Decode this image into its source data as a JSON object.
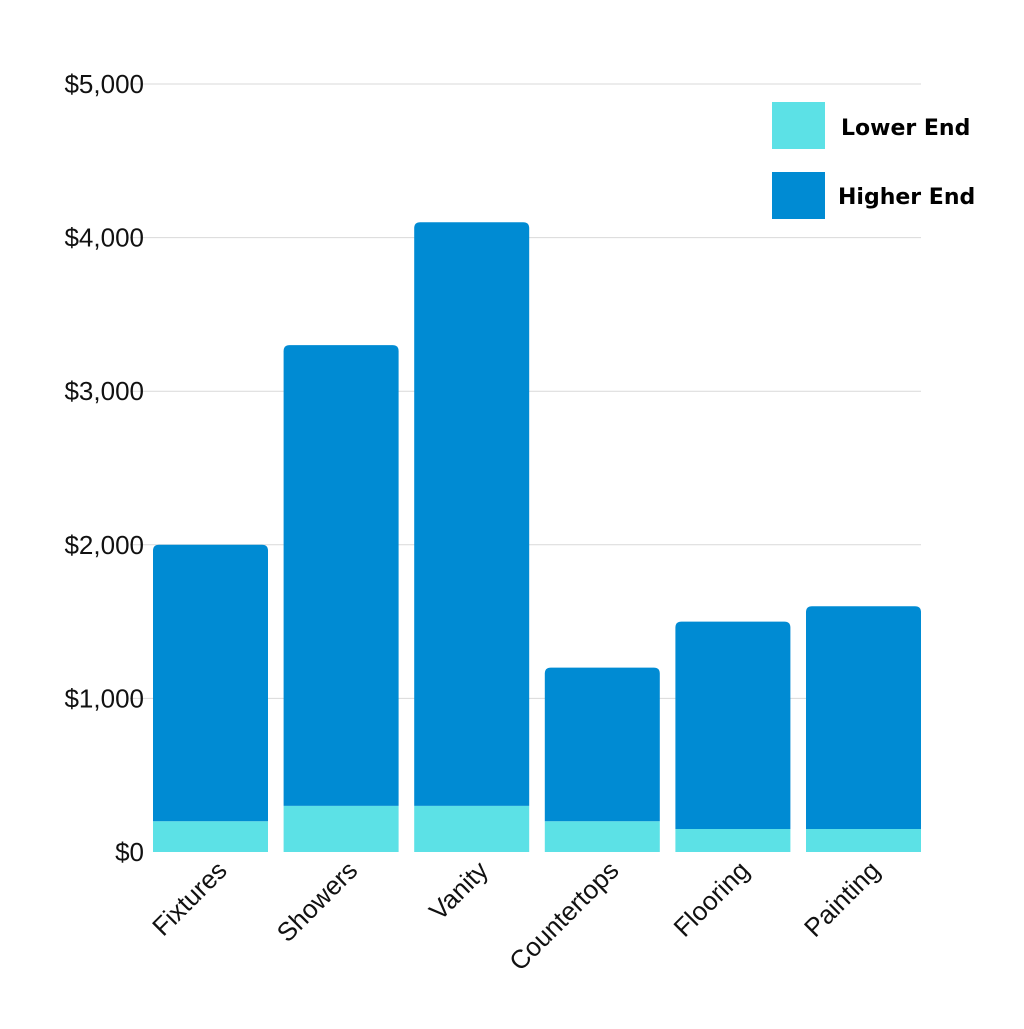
{
  "chart_data": {
    "type": "bar",
    "stacked": true,
    "categories": [
      "Fixtures",
      "Showers",
      "Vanity",
      "Countertops",
      "Flooring",
      "Painting"
    ],
    "series": [
      {
        "name": "Lower End",
        "color": "#5ce1e6",
        "values": [
          200,
          300,
          300,
          200,
          150,
          150
        ]
      },
      {
        "name": "Higher End",
        "color": "#008bd3",
        "values": [
          1800,
          3000,
          3800,
          1000,
          1350,
          1450
        ]
      }
    ],
    "ylim": [
      0,
      5000
    ],
    "yticks": [
      0,
      1000,
      2000,
      3000,
      4000,
      5000
    ],
    "ytick_labels": [
      "$0",
      "$1,000",
      "$2,000",
      "$3,000",
      "$4,000",
      "$5,000"
    ],
    "title": "",
    "xlabel": "",
    "ylabel": "",
    "grid": true,
    "legend_position": "top-right"
  }
}
